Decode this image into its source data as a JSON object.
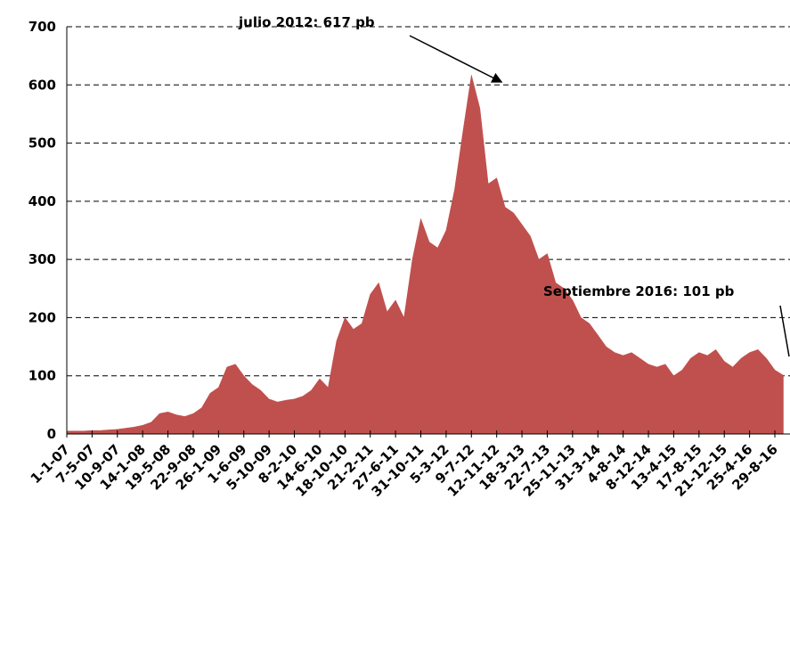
{
  "chart_data": {
    "type": "area",
    "categories": [
      "1-1-07",
      null,
      null,
      "7-5-07",
      null,
      null,
      "10-9-07",
      null,
      null,
      "14-1-08",
      null,
      null,
      "19-5-08",
      null,
      null,
      "22-9-08",
      null,
      null,
      "26-1-09",
      null,
      null,
      "1-6-09",
      null,
      null,
      "5-10-09",
      null,
      null,
      "8-2-10",
      null,
      null,
      "14-6-10",
      null,
      null,
      "18-10-10",
      null,
      null,
      "21-2-11",
      null,
      null,
      "27-6-11",
      null,
      null,
      "31-10-11",
      null,
      null,
      "5-3-12",
      null,
      null,
      "9-7-12",
      null,
      null,
      "12-11-12",
      null,
      null,
      "18-3-13",
      null,
      null,
      "22-7-13",
      null,
      null,
      "25-11-13",
      null,
      null,
      "31-3-14",
      null,
      null,
      "4-8-14",
      null,
      null,
      "8-12-14",
      null,
      null,
      "13-4-15",
      null,
      null,
      "17-8-15",
      null,
      null,
      "21-12-15",
      null,
      null,
      "25-4-16",
      null,
      null,
      "29-8-16",
      null
    ],
    "values": [
      5,
      5,
      5,
      6,
      6,
      7,
      8,
      10,
      12,
      15,
      20,
      35,
      38,
      33,
      30,
      35,
      45,
      70,
      80,
      115,
      120,
      100,
      85,
      75,
      60,
      55,
      58,
      60,
      65,
      75,
      95,
      80,
      160,
      200,
      180,
      190,
      240,
      260,
      210,
      230,
      200,
      300,
      370,
      330,
      320,
      350,
      420,
      520,
      617,
      560,
      430,
      440,
      390,
      380,
      360,
      340,
      300,
      310,
      260,
      250,
      230,
      200,
      190,
      170,
      150,
      140,
      135,
      140,
      130,
      120,
      115,
      120,
      100,
      110,
      130,
      140,
      135,
      145,
      125,
      115,
      130,
      140,
      145,
      130,
      110,
      101
    ],
    "color": "#c0504d",
    "ylim": [
      0,
      700
    ],
    "yticks": [
      0,
      100,
      200,
      300,
      400,
      500,
      600,
      700
    ],
    "grid": true,
    "annotations": [
      "julio 2012: 617 pb",
      "Septiembre 2016: 101 pb"
    ]
  }
}
